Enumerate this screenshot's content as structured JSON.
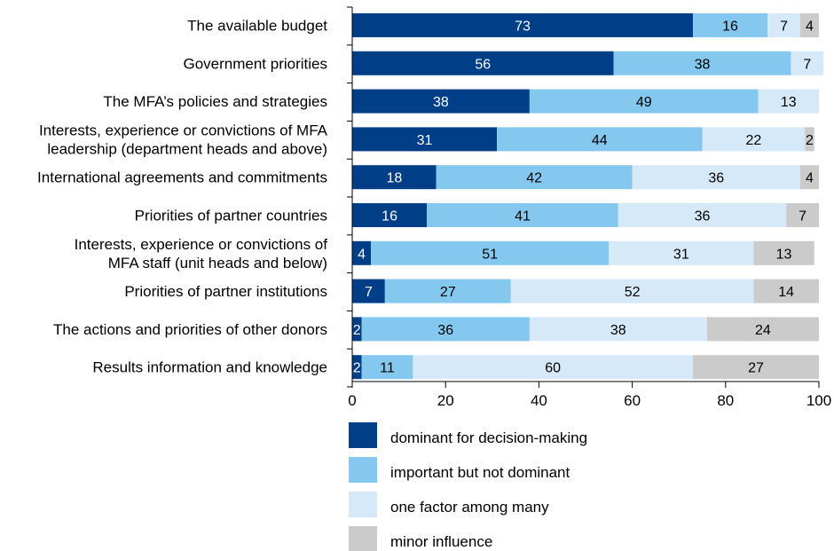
{
  "chart_data": {
    "type": "bar",
    "orientation": "horizontal",
    "stacked": true,
    "xlim": [
      0,
      100
    ],
    "xticks": [
      0,
      20,
      40,
      60,
      80,
      100
    ],
    "grid": false,
    "legend_position": "bottom-left",
    "categories": [
      [
        "The available budget"
      ],
      [
        "Government priorities"
      ],
      [
        "The MFA’s policies and strategies"
      ],
      [
        "Interests, experience or convictions of MFA",
        "leadership (department heads and above)"
      ],
      [
        "International agreements and commitments"
      ],
      [
        "Priorities of partner countries"
      ],
      [
        "Interests, experience or convictions of",
        "MFA staff (unit heads and below)"
      ],
      [
        "Priorities of partner institutions"
      ],
      [
        "The actions and priorities of other donors"
      ],
      [
        "Results information and knowledge"
      ]
    ],
    "series": [
      {
        "name": "dominant for decision-making",
        "color": "#003f87",
        "text_color": "#ffffff",
        "values": [
          73,
          56,
          38,
          31,
          18,
          16,
          4,
          7,
          2,
          2
        ]
      },
      {
        "name": "important but not dominant",
        "color": "#85c8ef",
        "text_color": "#000000",
        "values": [
          16,
          38,
          49,
          44,
          42,
          41,
          51,
          27,
          36,
          11
        ]
      },
      {
        "name": "one factor among many",
        "color": "#d6e9f8",
        "text_color": "#000000",
        "values": [
          7,
          7,
          13,
          22,
          36,
          36,
          31,
          52,
          38,
          60
        ]
      },
      {
        "name": "minor influence",
        "color": "#cbcbcb",
        "text_color": "#000000",
        "values": [
          4,
          null,
          null,
          2,
          4,
          7,
          13,
          14,
          24,
          27
        ]
      }
    ]
  }
}
